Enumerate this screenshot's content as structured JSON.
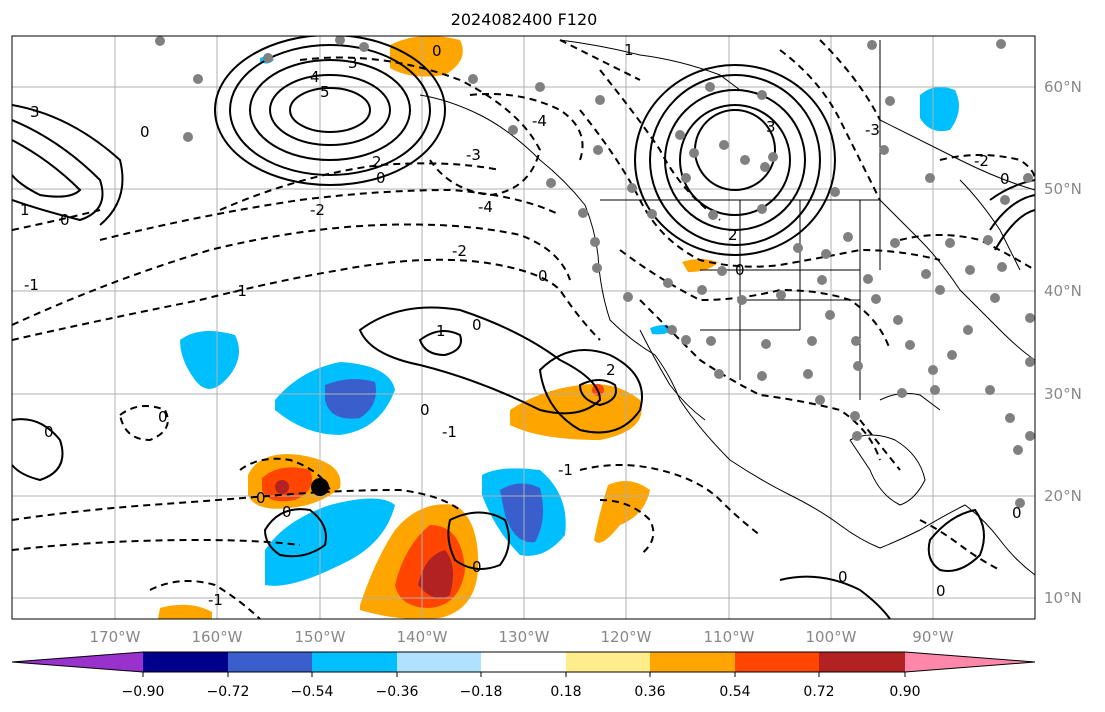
{
  "title": "2024082400 F120",
  "map": {
    "projection": "plate-carree",
    "lon_range": [
      -180,
      -80
    ],
    "lat_range": [
      8,
      65
    ],
    "lon_ticks": [
      "170°W",
      "160°W",
      "150°W",
      "140°W",
      "130°W",
      "120°W",
      "110°W",
      "100°W",
      "90°W"
    ],
    "lat_ticks": [
      "60°N",
      "50°N",
      "40°N",
      "30°N",
      "20°N",
      "10°N"
    ],
    "grid": true,
    "station_dot_color": "#808080",
    "marker": {
      "lon": -150,
      "lat": 21,
      "color": "#000000"
    }
  },
  "contour_labels": [
    "0",
    "1",
    "2",
    "3",
    "4",
    "5",
    "-1",
    "-2",
    "-3",
    "-4"
  ],
  "colorbar": {
    "ticks": [
      "−0.90",
      "−0.72",
      "−0.54",
      "−0.36",
      "−0.18",
      "0.18",
      "0.36",
      "0.54",
      "0.72",
      "0.90"
    ],
    "colors": [
      "#9932cc",
      "#00008b",
      "#3a5fcd",
      "#00bfff",
      "#b0e2ff",
      "#ffffff",
      "#ffec8b",
      "#ffa500",
      "#ff4500",
      "#b22222",
      "#ff88aa"
    ],
    "extend": "both"
  }
}
